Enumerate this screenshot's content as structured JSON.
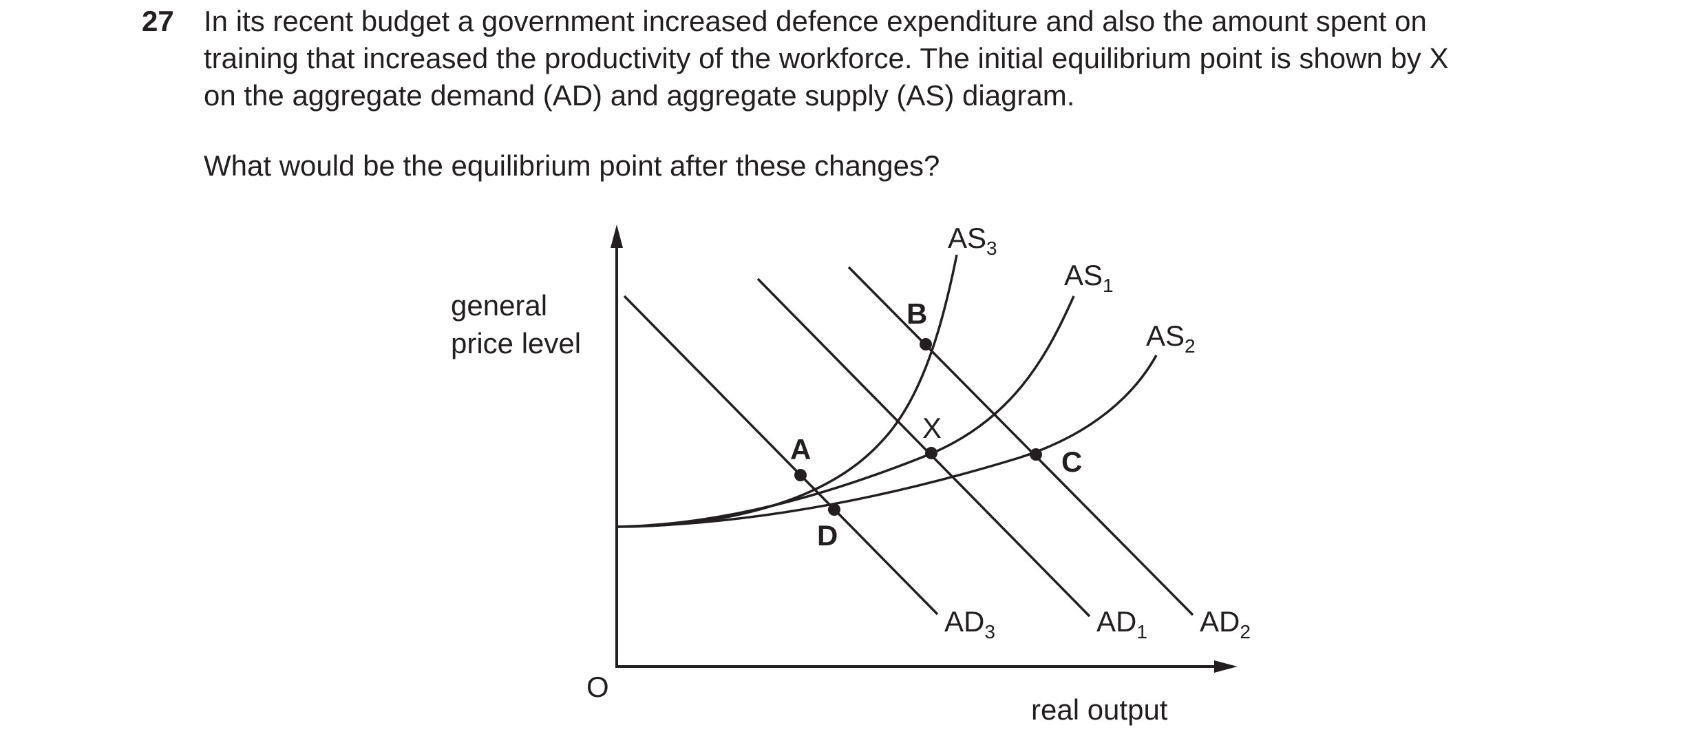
{
  "question": {
    "number": "27",
    "lines": [
      "In its recent budget a government increased defence expenditure and also the amount spent on",
      "training that increased the productivity of the workforce. The initial equilibrium point is shown by X",
      "on the aggregate demand (AD) and aggregate supply (AS) diagram."
    ],
    "prompt": "What would be the equilibrium point after these changes?"
  },
  "diagram": {
    "y_axis_label": [
      "general",
      "price level"
    ],
    "x_axis_label": "real output",
    "origin_label": "O",
    "curves": {
      "as3": {
        "base": "AS",
        "sub": "3"
      },
      "as1": {
        "base": "AS",
        "sub": "1"
      },
      "as2": {
        "base": "AS",
        "sub": "2"
      },
      "ad3": {
        "base": "AD",
        "sub": "3"
      },
      "ad1": {
        "base": "AD",
        "sub": "1"
      },
      "ad2": {
        "base": "AD",
        "sub": "2"
      }
    },
    "points": {
      "a": "A",
      "b": "B",
      "c": "C",
      "d": "D",
      "x": "X"
    }
  }
}
